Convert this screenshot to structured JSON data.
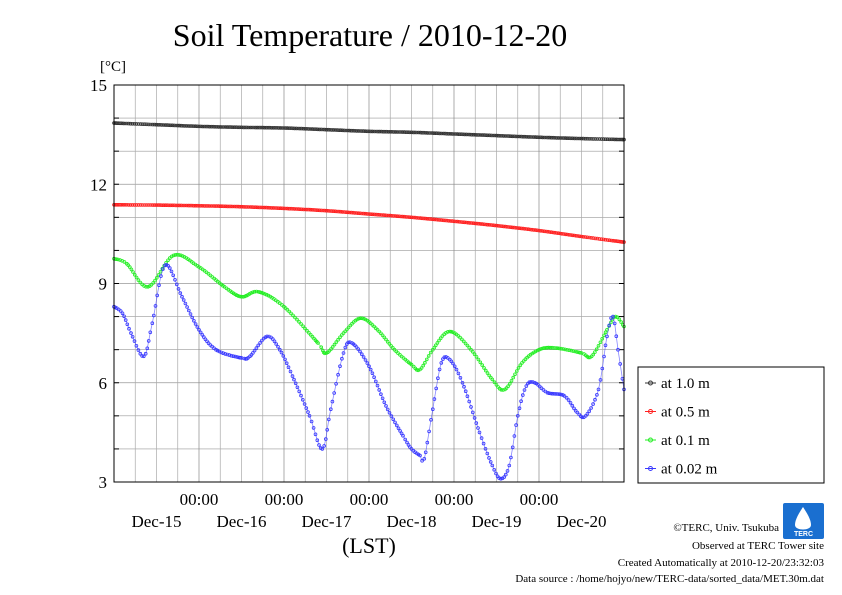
{
  "chart_data": {
    "type": "line",
    "title": "Soil Temperature / 2010-12-20",
    "yunit": "[°C]",
    "xlabel": "(LST)",
    "ylim": [
      3,
      15
    ],
    "yticks": [
      3,
      6,
      9,
      12,
      15
    ],
    "xlim": [
      0,
      6
    ],
    "x_tick_top_labels": [
      "00:00",
      "00:00",
      "00:00",
      "00:00",
      "00:00"
    ],
    "x_tick_dates": [
      "Dec-15",
      "Dec-16",
      "Dec-17",
      "Dec-18",
      "Dec-19",
      "Dec-20"
    ],
    "grid": true,
    "legend_position": "right",
    "series": [
      {
        "name": "at 1.0 m",
        "color": "#333333",
        "points": [
          [
            0,
            13.85
          ],
          [
            0.5,
            13.8
          ],
          [
            1,
            13.75
          ],
          [
            1.5,
            13.72
          ],
          [
            2,
            13.7
          ],
          [
            2.5,
            13.65
          ],
          [
            3,
            13.6
          ],
          [
            3.5,
            13.57
          ],
          [
            4,
            13.52
          ],
          [
            4.5,
            13.47
          ],
          [
            5,
            13.42
          ],
          [
            5.5,
            13.38
          ],
          [
            6,
            13.35
          ]
        ]
      },
      {
        "name": "at 0.5 m",
        "color": "#ff2020",
        "points": [
          [
            0,
            11.38
          ],
          [
            0.5,
            11.37
          ],
          [
            1,
            11.35
          ],
          [
            1.5,
            11.32
          ],
          [
            2,
            11.27
          ],
          [
            2.5,
            11.2
          ],
          [
            3,
            11.1
          ],
          [
            3.5,
            11.0
          ],
          [
            4,
            10.88
          ],
          [
            4.5,
            10.75
          ],
          [
            5,
            10.6
          ],
          [
            5.5,
            10.42
          ],
          [
            6,
            10.25
          ]
        ]
      },
      {
        "name": "at 0.1 m",
        "color": "#22ee22",
        "points": [
          [
            0,
            9.75
          ],
          [
            0.15,
            9.6
          ],
          [
            0.4,
            8.9
          ],
          [
            0.7,
            9.85
          ],
          [
            1,
            9.5
          ],
          [
            1.3,
            8.9
          ],
          [
            1.5,
            8.6
          ],
          [
            1.7,
            8.75
          ],
          [
            2,
            8.3
          ],
          [
            2.4,
            7.2
          ],
          [
            2.5,
            6.9
          ],
          [
            2.7,
            7.5
          ],
          [
            2.9,
            7.95
          ],
          [
            3.1,
            7.6
          ],
          [
            3.3,
            7.0
          ],
          [
            3.5,
            6.55
          ],
          [
            3.6,
            6.4
          ],
          [
            3.75,
            7.0
          ],
          [
            3.95,
            7.55
          ],
          [
            4.2,
            7.0
          ],
          [
            4.45,
            6.1
          ],
          [
            4.6,
            5.8
          ],
          [
            4.8,
            6.6
          ],
          [
            5.0,
            7.0
          ],
          [
            5.2,
            7.05
          ],
          [
            5.5,
            6.9
          ],
          [
            5.62,
            6.8
          ],
          [
            5.8,
            7.6
          ],
          [
            5.9,
            8.0
          ],
          [
            6.0,
            7.7
          ]
        ]
      },
      {
        "name": "at 0.02 m",
        "color": "#3838ff",
        "points": [
          [
            0,
            8.3
          ],
          [
            0.1,
            8.1
          ],
          [
            0.2,
            7.5
          ],
          [
            0.35,
            6.8
          ],
          [
            0.45,
            7.8
          ],
          [
            0.6,
            9.55
          ],
          [
            0.8,
            8.6
          ],
          [
            1.0,
            7.6
          ],
          [
            1.2,
            7.0
          ],
          [
            1.5,
            6.75
          ],
          [
            1.6,
            6.8
          ],
          [
            1.8,
            7.4
          ],
          [
            1.95,
            7.0
          ],
          [
            2.1,
            6.2
          ],
          [
            2.3,
            5.0
          ],
          [
            2.45,
            4.0
          ],
          [
            2.55,
            5.2
          ],
          [
            2.7,
            6.9
          ],
          [
            2.8,
            7.2
          ],
          [
            3.0,
            6.5
          ],
          [
            3.2,
            5.3
          ],
          [
            3.4,
            4.4
          ],
          [
            3.5,
            4.0
          ],
          [
            3.6,
            3.8
          ],
          [
            3.65,
            3.7
          ],
          [
            3.75,
            5.2
          ],
          [
            3.85,
            6.6
          ],
          [
            3.95,
            6.7
          ],
          [
            4.1,
            6.0
          ],
          [
            4.3,
            4.5
          ],
          [
            4.45,
            3.5
          ],
          [
            4.55,
            3.1
          ],
          [
            4.65,
            3.5
          ],
          [
            4.75,
            5.0
          ],
          [
            4.85,
            5.9
          ],
          [
            4.95,
            6.0
          ],
          [
            5.1,
            5.7
          ],
          [
            5.3,
            5.6
          ],
          [
            5.45,
            5.1
          ],
          [
            5.55,
            5.0
          ],
          [
            5.7,
            5.8
          ],
          [
            5.8,
            7.4
          ],
          [
            5.87,
            8.0
          ],
          [
            5.93,
            7.0
          ],
          [
            6.0,
            5.8
          ]
        ]
      }
    ]
  },
  "credits": {
    "copyright": "©TERC, Univ. Tsukuba",
    "observed": "Observed at TERC Tower site",
    "created": "Created Automatically at 2010-12-20/23:32:03",
    "source": "Data source : /home/hojyo/new/TERC-data/sorted_data/MET.30m.dat"
  },
  "logo": {
    "text": "TERC",
    "color": "#1a6fd0"
  }
}
